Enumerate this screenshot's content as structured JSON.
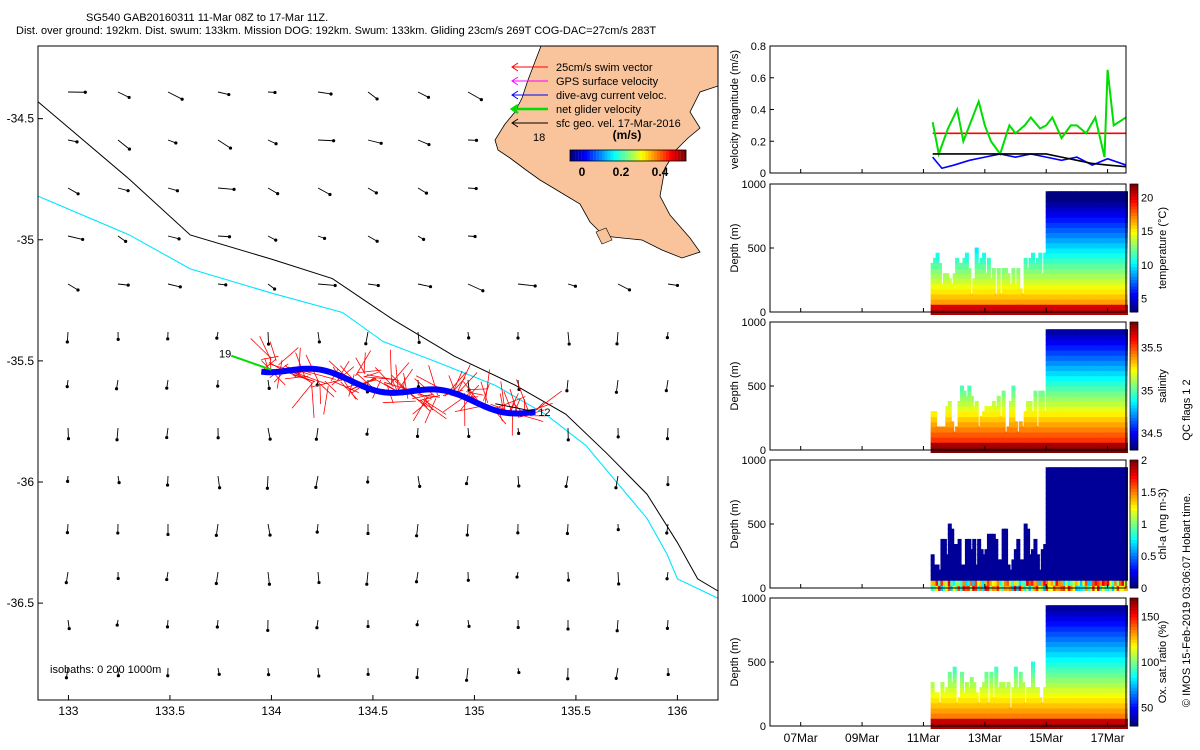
{
  "header": {
    "title_line1": "SG540 GAB20160311 11-Mar 08Z to 17-Mar 11Z.",
    "title_line2": "Dist. over ground: 192km. Dist. swum: 133km. Mission DOG: 192km. Swum: 133km. Gliding 23cm/s 269T COG-DAC=27cm/s 283T"
  },
  "colors": {
    "land": "#f9c49b",
    "swim": "#ff0000",
    "gps": "#ff00ff",
    "dac": "#0000ff",
    "net": "#00dd00",
    "geo": "#000000",
    "isobath_200": "#00e5ff"
  },
  "map": {
    "legend": {
      "items": [
        {
          "label": "25cm/s swim vector",
          "color": "#ff0000"
        },
        {
          "label": "GPS surface velocity",
          "color": "#ff00ff"
        },
        {
          "label": "dive-avg current veloc.",
          "color": "#0000ff"
        },
        {
          "label": "net glider velocity",
          "color": "#00dd00"
        },
        {
          "label": "sfc geo. vel. 17-Mar-2016",
          "color": "#000000"
        }
      ]
    },
    "colorbar": {
      "unit": "(m/s)",
      "ticks": [
        "0",
        "0.2",
        "0.4"
      ]
    },
    "track_labels": {
      "start": "12",
      "end": "19",
      "coast_day": "18"
    },
    "isobath_label": "isobaths: 0   200  1000m"
  },
  "chart_data": [
    {
      "type": "scatter",
      "name_key": "map",
      "xlim": [
        132.85,
        136.2
      ],
      "ylim": [
        -36.9,
        -34.2
      ],
      "xticks": [
        "133",
        "133.5",
        "134",
        "134.5",
        "135",
        "135.5",
        "136"
      ],
      "xtick_values": [
        133,
        133.5,
        134,
        134.5,
        135,
        135.5,
        136
      ],
      "yticks": [
        "-34.5",
        "-35",
        "-35.5",
        "-36",
        "-36.5"
      ],
      "ytick_values": [
        -34.5,
        -35,
        -35.5,
        -36,
        -36.5
      ],
      "track_start": [
        135.3,
        -35.71
      ],
      "track_end": [
        133.95,
        -35.52
      ],
      "isobath_200": [
        [
          132.85,
          -34.82
        ],
        [
          133.3,
          -34.98
        ],
        [
          133.6,
          -35.12
        ],
        [
          134.0,
          -35.22
        ],
        [
          134.35,
          -35.3
        ],
        [
          134.55,
          -35.42
        ],
        [
          134.8,
          -35.5
        ],
        [
          135.1,
          -35.6
        ],
        [
          135.35,
          -35.72
        ],
        [
          135.55,
          -35.85
        ],
        [
          135.7,
          -36.0
        ],
        [
          135.85,
          -36.15
        ],
        [
          135.95,
          -36.3
        ],
        [
          136.0,
          -36.4
        ],
        [
          136.2,
          -36.48
        ]
      ],
      "isobath_1000": [
        [
          132.85,
          -34.43
        ],
        [
          133.3,
          -34.75
        ],
        [
          133.6,
          -34.98
        ],
        [
          134.0,
          -35.08
        ],
        [
          134.3,
          -35.16
        ],
        [
          134.6,
          -35.33
        ],
        [
          134.9,
          -35.48
        ],
        [
          135.2,
          -35.6
        ],
        [
          135.45,
          -35.72
        ],
        [
          135.65,
          -35.88
        ],
        [
          135.85,
          -36.05
        ],
        [
          136.0,
          -36.25
        ],
        [
          136.1,
          -36.4
        ],
        [
          136.2,
          -36.45
        ]
      ]
    },
    {
      "type": "line",
      "name_key": "velocity",
      "ylabel": "velocity magnitude (m/s)",
      "ylim": [
        0,
        0.8
      ],
      "yticks": [
        "0",
        "0.2",
        "0.4",
        "0.6",
        "0.8"
      ],
      "ytick_values": [
        0,
        0.2,
        0.4,
        0.6,
        0.8
      ],
      "series": [
        {
          "color": "#ff0000",
          "x": [
            11.3,
            17.6
          ],
          "y": [
            0.25,
            0.25
          ]
        },
        {
          "color": "#00dd00",
          "x": [
            11.3,
            11.5,
            11.8,
            12.0,
            12.1,
            12.3,
            12.5,
            12.8,
            13.0,
            13.2,
            13.5,
            13.8,
            14.0,
            14.3,
            14.5,
            14.8,
            15.0,
            15.2,
            15.5,
            15.8,
            16.0,
            16.3,
            16.6,
            16.9,
            17.0,
            17.2,
            17.6
          ],
          "y": [
            0.32,
            0.12,
            0.28,
            0.36,
            0.4,
            0.2,
            0.3,
            0.45,
            0.3,
            0.2,
            0.12,
            0.3,
            0.25,
            0.3,
            0.35,
            0.28,
            0.3,
            0.35,
            0.22,
            0.3,
            0.3,
            0.25,
            0.35,
            0.1,
            0.65,
            0.3,
            0.35
          ]
        },
        {
          "color": "#0000ff",
          "x": [
            11.3,
            11.6,
            12.0,
            12.5,
            13.0,
            13.5,
            14.0,
            14.5,
            15.0,
            15.5,
            16.0,
            16.5,
            17.0,
            17.6
          ],
          "y": [
            0.1,
            0.03,
            0.05,
            0.08,
            0.1,
            0.12,
            0.1,
            0.12,
            0.1,
            0.08,
            0.1,
            0.05,
            0.09,
            0.05
          ]
        },
        {
          "color": "#000000",
          "x": [
            11.3,
            12.0,
            13.0,
            14.0,
            15.0,
            15.5,
            16.0,
            16.5,
            17.0,
            17.6
          ],
          "y": [
            0.12,
            0.12,
            0.12,
            0.12,
            0.12,
            0.1,
            0.08,
            0.06,
            0.05,
            0.04
          ]
        }
      ]
    },
    {
      "type": "heatmap",
      "name_key": "temperature",
      "ylabel": "Depth (m)",
      "cbar_label": "temperature (°C)",
      "ylim": [
        1000,
        0
      ],
      "yticks": [
        "0",
        "500",
        "1000"
      ],
      "ytick_values": [
        0,
        500,
        1000
      ],
      "cbar_ticks": [
        "5",
        "10",
        "15",
        "20"
      ],
      "cbar_tick_values": [
        5,
        10,
        15,
        20
      ],
      "clim": [
        3,
        22
      ]
    },
    {
      "type": "heatmap",
      "name_key": "salinity",
      "ylabel": "Depth (m)",
      "cbar_label": "salinity",
      "ylim": [
        1000,
        0
      ],
      "yticks": [
        "0",
        "500",
        "1000"
      ],
      "ytick_values": [
        0,
        500,
        1000
      ],
      "cbar_ticks": [
        "34.5",
        "35",
        "35.5"
      ],
      "cbar_tick_values": [
        34.5,
        35,
        35.5
      ],
      "clim": [
        34.3,
        35.8
      ]
    },
    {
      "type": "heatmap",
      "name_key": "chla",
      "ylabel": "Depth (m)",
      "cbar_label": "chl-a (mg m-3)",
      "ylim": [
        1000,
        0
      ],
      "yticks": [
        "0",
        "500",
        "1000"
      ],
      "ytick_values": [
        0,
        500,
        1000
      ],
      "cbar_ticks": [
        "0",
        "0.5",
        "1",
        "1.5",
        "2"
      ],
      "cbar_tick_values": [
        0,
        0.5,
        1,
        1.5,
        2
      ],
      "clim": [
        0,
        2
      ]
    },
    {
      "type": "heatmap",
      "name_key": "oxygen",
      "ylabel": "Depth (m)",
      "cbar_label": "Ox. sat. ratio (%)",
      "ylim": [
        1000,
        0
      ],
      "yticks": [
        "0",
        "500",
        "1000"
      ],
      "ytick_values": [
        0,
        500,
        1000
      ],
      "cbar_ticks": [
        "50",
        "100",
        "150"
      ],
      "cbar_tick_values": [
        50,
        100,
        150
      ],
      "clim": [
        30,
        170
      ]
    }
  ],
  "time_axis": {
    "xlim": [
      6.0,
      17.6
    ],
    "ticks": [
      "07Mar",
      "09Mar",
      "11Mar",
      "13Mar",
      "15Mar",
      "17Mar"
    ],
    "tick_values": [
      7,
      9,
      11,
      13,
      15,
      17
    ]
  },
  "side_note": "QC flags 1  2",
  "credit": "© IMOS 15-Feb-2019 03:06:07 Hobart time."
}
